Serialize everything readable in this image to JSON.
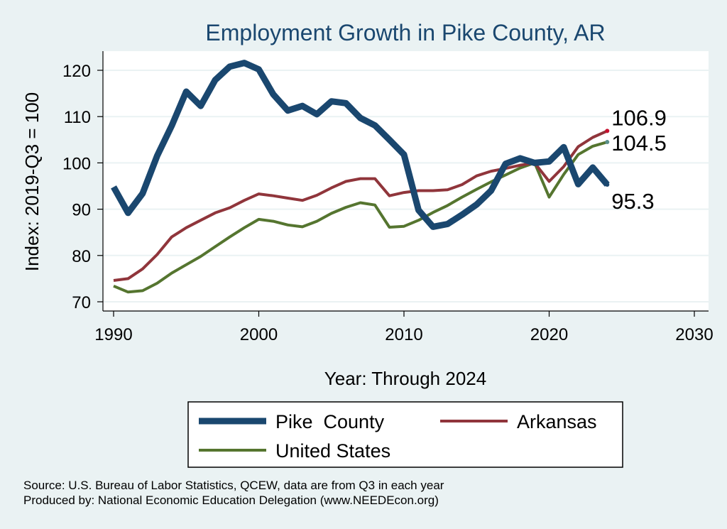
{
  "chart_data": {
    "type": "line",
    "title": "Employment Growth in Pike County, AR",
    "xlabel": "Year: Through 2024",
    "ylabel": "Index: 2019-Q3 = 100",
    "xlim": [
      1990,
      2030
    ],
    "ylim": [
      70,
      122
    ],
    "x_ticks": [
      1990,
      2000,
      2010,
      2020,
      2030
    ],
    "y_ticks": [
      70,
      80,
      90,
      100,
      110,
      120
    ],
    "grid": true,
    "legend_position": "bottom",
    "x": [
      1990,
      1991,
      1992,
      1993,
      1994,
      1995,
      1996,
      1997,
      1998,
      1999,
      2000,
      2001,
      2002,
      2003,
      2004,
      2005,
      2006,
      2007,
      2008,
      2009,
      2010,
      2011,
      2012,
      2013,
      2014,
      2015,
      2016,
      2017,
      2018,
      2019,
      2020,
      2021,
      2022,
      2023,
      2024
    ],
    "series": [
      {
        "name": "Pike  County",
        "color": "#1a476f",
        "line_width": 9,
        "values": [
          94.8,
          89.2,
          93.4,
          101.5,
          108.0,
          115.4,
          112.3,
          117.9,
          120.8,
          121.6,
          120.2,
          114.8,
          111.3,
          112.3,
          110.5,
          113.3,
          112.9,
          109.7,
          108.1,
          105.0,
          101.8,
          89.8,
          86.2,
          86.8,
          88.8,
          91.0,
          94.0,
          99.8,
          101.0,
          100.0,
          100.3,
          103.4,
          95.4,
          99.0,
          95.3
        ]
      },
      {
        "name": "Arkansas",
        "color": "#90353b",
        "line_width": 4,
        "values": [
          74.6,
          75.0,
          77.1,
          80.2,
          84.0,
          86.0,
          87.6,
          89.2,
          90.3,
          91.9,
          93.3,
          92.9,
          92.4,
          91.9,
          93.0,
          94.6,
          96.0,
          96.6,
          96.6,
          92.9,
          93.6,
          94.0,
          94.0,
          94.2,
          95.3,
          97.2,
          98.2,
          98.8,
          99.5,
          100.0,
          96.0,
          99.2,
          103.5,
          105.5,
          106.9
        ]
      },
      {
        "name": "United States",
        "color": "#55752f",
        "line_width": 4,
        "values": [
          73.4,
          72.1,
          72.4,
          74.0,
          76.2,
          78.0,
          79.8,
          81.9,
          84.0,
          86.0,
          87.8,
          87.4,
          86.6,
          86.2,
          87.4,
          89.1,
          90.4,
          91.4,
          90.9,
          86.1,
          86.3,
          87.6,
          89.3,
          90.8,
          92.6,
          94.3,
          95.9,
          97.4,
          98.9,
          100.0,
          92.6,
          97.5,
          101.8,
          103.6,
          104.5
        ]
      }
    ],
    "end_labels": [
      {
        "series": "Arkansas",
        "text": "106.9"
      },
      {
        "series": "United States",
        "text": "104.5"
      },
      {
        "series": "Pike  County",
        "text": "95.3"
      }
    ]
  },
  "legend": {
    "items": [
      "Pike  County",
      "Arkansas",
      "United States"
    ]
  },
  "source": {
    "line1": "Source: U.S. Bureau of Labor Statistics, QCEW, data are from Q3 in each year",
    "line2": "Produced by: National Economic Education Delegation (www.NEEDEcon.org)"
  }
}
